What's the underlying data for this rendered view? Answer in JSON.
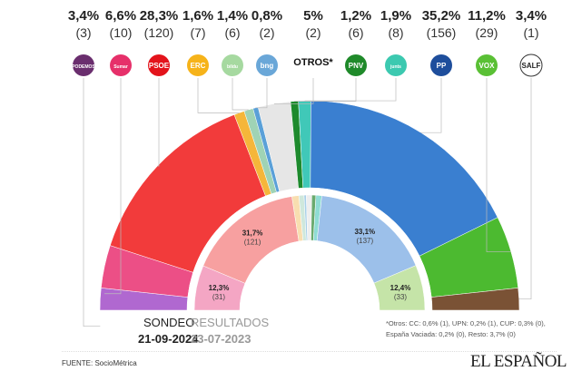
{
  "chart_data": {
    "type": "hemicycle",
    "title": "",
    "outer_ring": {
      "label": "SONDEO",
      "date": "21-09-2024",
      "parties": [
        {
          "name": "PODEMOS",
          "pct_label": "3,4%",
          "seats_label": "(3)",
          "pct": 3.4,
          "seats": 3,
          "logo_color": "#6a2e6e",
          "arc_color": "#b068d0"
        },
        {
          "name": "Sumar",
          "pct_label": "6,6%",
          "seats_label": "(10)",
          "pct": 6.6,
          "seats": 10,
          "logo_color": "#e6306a",
          "arc_color": "#ec4f86"
        },
        {
          "name": "PSOE",
          "pct_label": "28,3%",
          "seats_label": "(120)",
          "pct": 28.3,
          "seats": 120,
          "logo_color": "#e3131b",
          "arc_color": "#f23b3b"
        },
        {
          "name": "ERC",
          "pct_label": "1,6%",
          "seats_label": "(7)",
          "pct": 1.6,
          "seats": 7,
          "logo_color": "#f6b31a",
          "arc_color": "#f5b63a"
        },
        {
          "name": "bildu",
          "pct_label": "1,4%",
          "seats_label": "(6)",
          "pct": 1.4,
          "seats": 6,
          "logo_color": "#a6d9a0",
          "arc_color": "#9fd3b5"
        },
        {
          "name": "bng",
          "pct_label": "0,8%",
          "seats_label": "(2)",
          "pct": 0.8,
          "seats": 2,
          "logo_color": "#6aa7d8",
          "arc_color": "#5aa0d8"
        },
        {
          "name": "OTROS*",
          "pct_label": "5%",
          "seats_label": "(2)",
          "pct": 5,
          "seats": 2,
          "logo_color": "",
          "arc_color": "#e6e6e6"
        },
        {
          "name": "PNV",
          "pct_label": "1,2%",
          "seats_label": "(6)",
          "pct": 1.2,
          "seats": 6,
          "logo_color": "#1f8a2a",
          "arc_color": "#1d8a2d"
        },
        {
          "name": "junts",
          "pct_label": "1,9%",
          "seats_label": "(8)",
          "pct": 1.9,
          "seats": 8,
          "logo_color": "#3cc9b0",
          "arc_color": "#40c8b8"
        },
        {
          "name": "PP",
          "pct_label": "35,2%",
          "seats_label": "(156)",
          "pct": 35.2,
          "seats": 156,
          "logo_color": "#1e4e9c",
          "arc_color": "#3a7fd0"
        },
        {
          "name": "VOX",
          "pct_label": "11,2%",
          "seats_label": "(29)",
          "pct": 11.2,
          "seats": 29,
          "logo_color": "#5ac035",
          "arc_color": "#4cba30"
        },
        {
          "name": "SALF",
          "pct_label": "3,4%",
          "seats_label": "(1)",
          "pct": 3.4,
          "seats": 1,
          "logo_color": "#ffffff",
          "arc_color": "#7a5235"
        }
      ]
    },
    "inner_ring": {
      "label": "RESULTADOS",
      "date": "23-07-2023",
      "parties": [
        {
          "name": "Sumar",
          "pct": 12.3,
          "pct_label": "12,3%",
          "seats_label": "(31)",
          "color": "#f4a6c4"
        },
        {
          "name": "PSOE",
          "pct": 31.7,
          "pct_label": "31,7%",
          "seats_label": "(121)",
          "color": "#f7a0a0"
        },
        {
          "name": "ERC",
          "pct": 1.9,
          "color": "#f8deb0"
        },
        {
          "name": "bildu",
          "pct": 1.4,
          "color": "#cfe8dc"
        },
        {
          "name": "bng",
          "pct": 0.6,
          "color": "#a9d0e8"
        },
        {
          "name": "otros",
          "pct": 1.5,
          "color": "#eeeeee"
        },
        {
          "name": "PNV",
          "pct": 1.1,
          "color": "#6aaa6e"
        },
        {
          "name": "junts",
          "pct": 1.6,
          "color": "#8fdcd4"
        },
        {
          "name": "PP",
          "pct": 33.1,
          "pct_label": "33,1%",
          "seats_label": "(137)",
          "color": "#9cc0ea"
        },
        {
          "name": "VOX",
          "pct": 12.4,
          "pct_label": "12,4%",
          "seats_label": "(33)",
          "color": "#c5e4a8"
        }
      ]
    }
  },
  "legend": {
    "sondeo": "SONDEO",
    "resultados": "RESULTADOS",
    "date_sondeo": "21-09-2024",
    "date_resultados": "23-07-2023"
  },
  "note": "*Otros: CC: 0,6% (1), UPN: 0,2% (1), CUP: 0,3% (0), España Vaciada: 0,2% (0), Resto: 3,7% (0)",
  "source": "FUENTE: SocioMétrica",
  "brand": "EL ESPAÑOL"
}
